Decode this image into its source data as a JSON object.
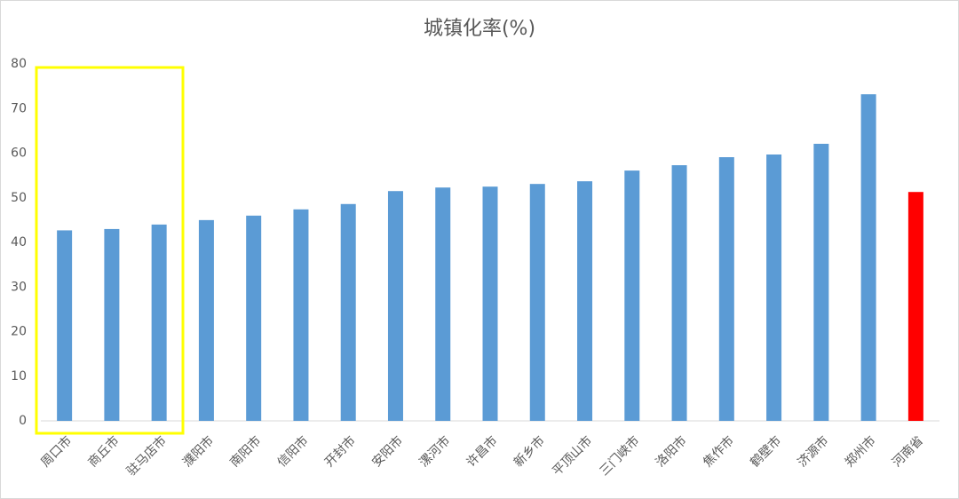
{
  "chart_data": {
    "type": "bar",
    "title": "城镇化率(%)",
    "categories": [
      "周口市",
      "商丘市",
      "驻马店市",
      "濮阳市",
      "南阳市",
      "信阳市",
      "开封市",
      "安阳市",
      "漯河市",
      "许昌市",
      "新乡市",
      "平顶山市",
      "三门峡市",
      "洛阳市",
      "焦作市",
      "鹤壁市",
      "济源市",
      "郑州市",
      "河南省"
    ],
    "values": [
      42.7,
      43.0,
      44.0,
      45.0,
      46.0,
      47.4,
      48.6,
      51.5,
      52.3,
      52.5,
      53.1,
      53.7,
      56.1,
      57.3,
      59.1,
      59.7,
      62.1,
      73.2,
      51.3
    ],
    "colors": [
      "#5b9bd5",
      "#5b9bd5",
      "#5b9bd5",
      "#5b9bd5",
      "#5b9bd5",
      "#5b9bd5",
      "#5b9bd5",
      "#5b9bd5",
      "#5b9bd5",
      "#5b9bd5",
      "#5b9bd5",
      "#5b9bd5",
      "#5b9bd5",
      "#5b9bd5",
      "#5b9bd5",
      "#5b9bd5",
      "#5b9bd5",
      "#5b9bd5",
      "#ff0000"
    ],
    "ylim": [
      0,
      80
    ],
    "yticks": [
      0,
      10,
      20,
      30,
      40,
      50,
      60,
      70,
      80
    ],
    "grid": false
  }
}
